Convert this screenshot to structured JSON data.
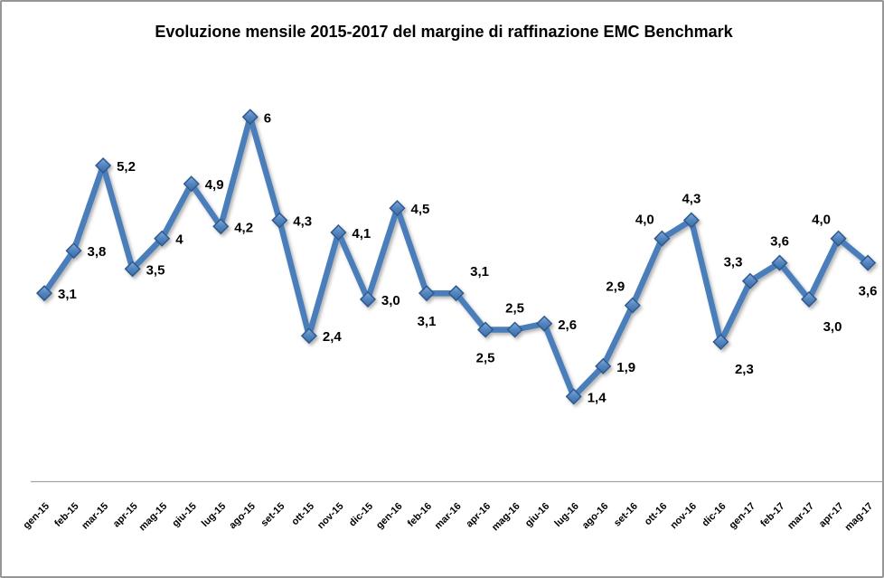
{
  "window": {
    "background_color": "#ffffff",
    "frame_border_color": "#969696"
  },
  "chart_data": {
    "type": "line",
    "title": "Evoluzione mensile 2015-2017 del margine di raffinazione EMC Benchmark",
    "xlabel": "",
    "ylabel": "",
    "categories": [
      "gen-15",
      "feb-15",
      "mar-15",
      "apr-15",
      "mag-15",
      "giu-15",
      "lug-15",
      "ago-15",
      "set-15",
      "ott-15",
      "nov-15",
      "dic-15",
      "gen-16",
      "feb-16",
      "mar-16",
      "apr-16",
      "mag-16",
      "giu-16",
      "lug-16",
      "ago-16",
      "set-16",
      "ott-16",
      "nov-16",
      "dic-16",
      "gen-17",
      "feb-17",
      "mar-17",
      "apr-17",
      "mag-17"
    ],
    "values": [
      3.1,
      3.8,
      5.2,
      3.5,
      4,
      4.9,
      4.2,
      6,
      4.3,
      2.4,
      4.1,
      3.0,
      4.5,
      3.1,
      3.1,
      2.5,
      2.5,
      2.6,
      1.4,
      1.9,
      2.9,
      4.0,
      4.3,
      2.3,
      3.3,
      3.6,
      3.0,
      4.0,
      3.6
    ],
    "value_labels": [
      "3,1",
      "3,8",
      "5,2",
      "3,5",
      "4",
      "4,9",
      "4,2",
      "6",
      "4,3",
      "2,4",
      "4,1",
      "3,0",
      "4,5",
      "3,1",
      "3,1",
      "2,5",
      "2,5",
      "2,6",
      "1,4",
      "1,9",
      "2,9",
      "4,0",
      "4,3",
      "2,3",
      "3,3",
      "3,6",
      "3,0",
      "4,0",
      "3,6"
    ],
    "label_positions": [
      "right",
      "right",
      "right",
      "right",
      "right",
      "right",
      "right",
      "right",
      "right",
      "right",
      "right",
      "right",
      "right",
      "below",
      "above-right",
      "below",
      "above",
      "right",
      "right",
      "right",
      "above-left",
      "above-left",
      "above",
      "below-right",
      "above-left",
      "above",
      "below-right",
      "above-left",
      "below"
    ],
    "ylim": [
      0,
      7
    ],
    "grid": false,
    "legend": "none",
    "marker": "diamond",
    "colors": {
      "line": "#4A7EBB",
      "marker_fill_top": "#85AEDC",
      "marker_fill_bottom": "#3E6DA3",
      "marker_stroke": "#2E5A8F",
      "axis_line": "#A3A3A3",
      "label_text": "#000000",
      "shadow": "#6B6B6B"
    }
  }
}
